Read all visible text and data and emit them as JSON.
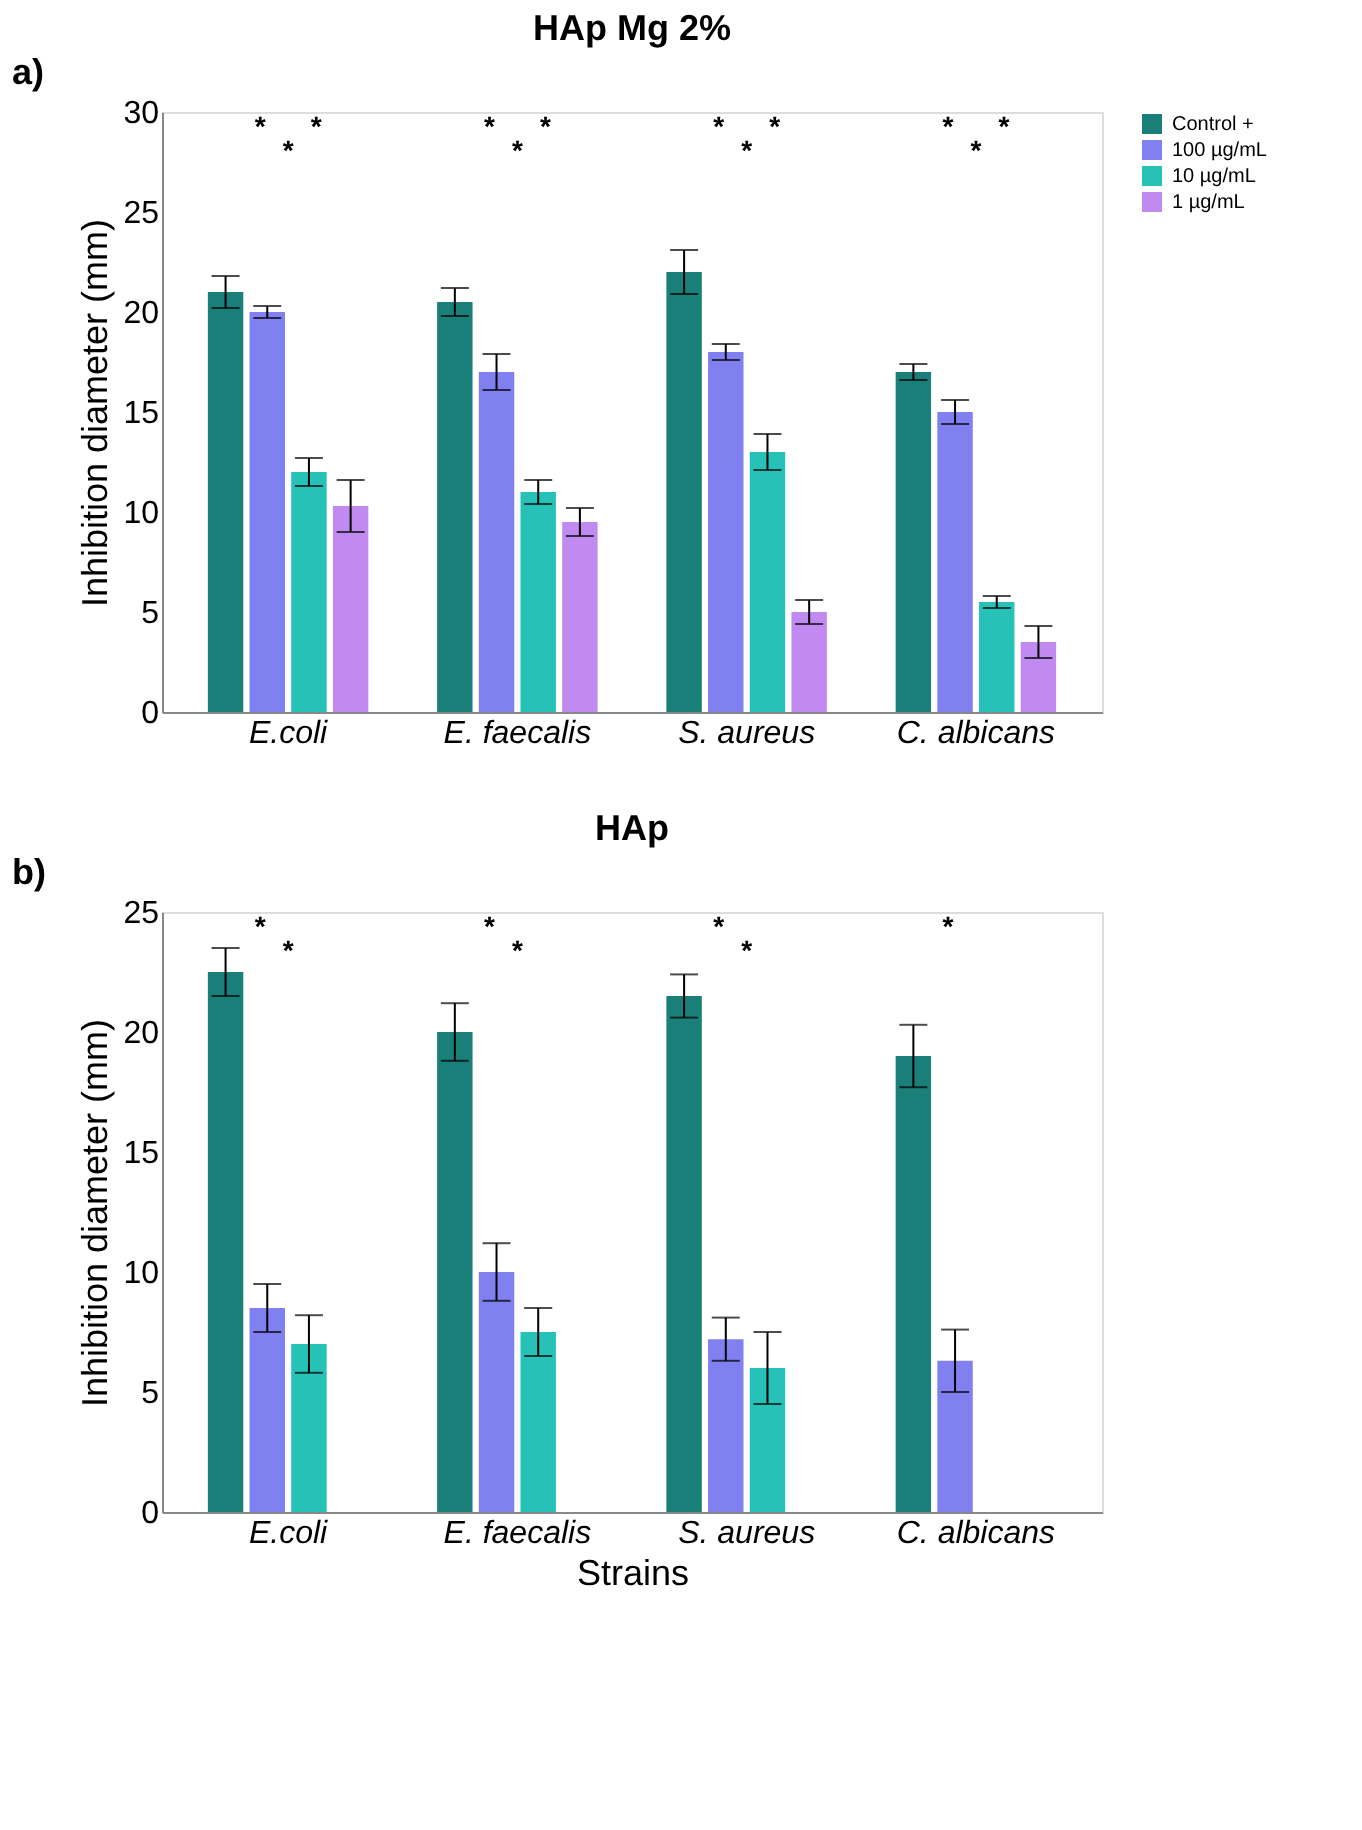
{
  "chart_data": [
    {
      "type": "bar",
      "title": "HAp Mg 2%",
      "ylabel": "Inhibition diameter (mm)",
      "categories": [
        "E.coli",
        "E. faecalis",
        "S. aureus",
        "C. albicans"
      ],
      "series": [
        {
          "name": "Control +",
          "color": "#1a7f78",
          "values": [
            21,
            20.5,
            22,
            17
          ],
          "errors": [
            0.8,
            0.7,
            1.1,
            0.4
          ]
        },
        {
          "name": "100 µg/mL",
          "color": "#8080f0",
          "values": [
            20,
            17,
            18,
            15
          ],
          "errors": [
            0.3,
            0.9,
            0.4,
            0.6
          ]
        },
        {
          "name": "10 µg/mL",
          "color": "#26c2b8",
          "values": [
            12,
            11,
            13,
            5.5
          ],
          "errors": [
            0.7,
            0.6,
            0.9,
            0.3
          ]
        },
        {
          "name": "1 µg/mL",
          "color": "#c08af0",
          "values": [
            10.3,
            9.5,
            5,
            3.5
          ],
          "errors": [
            1.3,
            0.7,
            0.6,
            0.8
          ]
        }
      ],
      "ylim": [
        0,
        30
      ],
      "yticks": [
        0,
        5,
        10,
        15,
        20,
        25,
        30
      ],
      "grid": false,
      "legend": "top right",
      "annotations": [
        "a)",
        "*",
        "*",
        "*",
        "*",
        "*",
        "*",
        "*",
        "*",
        "*",
        "*",
        "*",
        "*"
      ]
    },
    {
      "type": "bar",
      "title": "HAp",
      "xlabel": "Strains",
      "ylabel": "Inhibition diameter (mm)",
      "categories": [
        "E.coli",
        "E. faecalis",
        "S. aureus",
        "C. albicans"
      ],
      "series": [
        {
          "color": "#1a7f78",
          "values": [
            22.5,
            20,
            21.5,
            19
          ],
          "errors": [
            1,
            1.2,
            0.9,
            1.3
          ]
        },
        {
          "color": "#8080f0",
          "values": [
            8.5,
            10,
            7.2,
            6.3
          ],
          "errors": [
            1,
            1.2,
            0.9,
            1.3
          ]
        },
        {
          "color": "#26c2b8",
          "values": [
            7,
            7.5,
            6,
            null
          ],
          "errors": [
            1.2,
            1,
            1.5,
            null
          ]
        }
      ],
      "ylim": [
        0,
        25
      ],
      "yticks": [
        0,
        5,
        10,
        15,
        20,
        25
      ],
      "grid": false,
      "legend": false,
      "annotations": [
        "b)",
        "*",
        "*",
        "*",
        "*",
        "*",
        "*",
        "*"
      ]
    }
  ]
}
